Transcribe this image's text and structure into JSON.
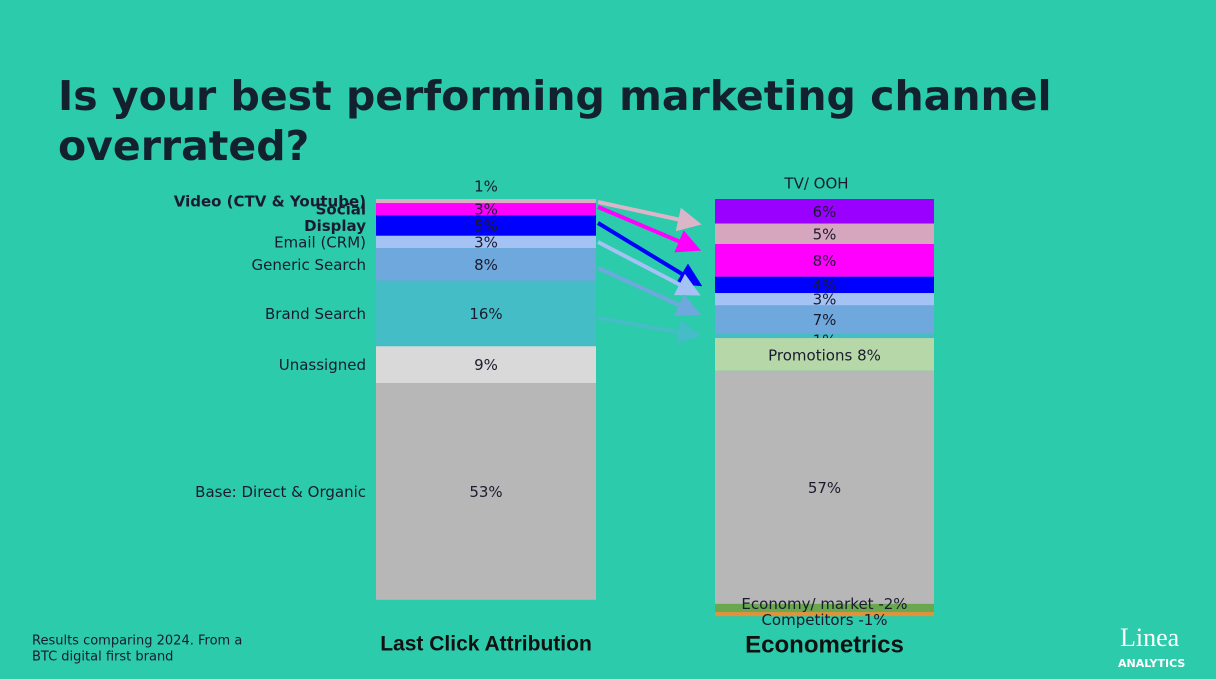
{
  "chart_data": {
    "type": "stacked_columns",
    "title": [
      "Is your best performing marketing channel",
      "overrated?"
    ],
    "columns": [
      {
        "name": "Last Click Attribution",
        "labels": [
          "Video (CTV & Youtube)",
          "Social",
          "Display",
          "Email (CRM)",
          "Generic Search",
          "Brand Search",
          "Unassigned",
          "Base: Direct & Organic"
        ],
        "values": [
          1,
          3,
          5,
          3,
          8,
          16,
          9,
          53
        ],
        "value_labels": [
          "1%",
          "3%",
          "5%",
          "3%",
          "8%",
          "16%",
          "9%",
          "53%"
        ],
        "colors": [
          "#dcaec6",
          "#ff00ff",
          "#0000ff",
          "#a4c2f4",
          "#6fa8dc",
          "#45bdc6",
          "#d9d9d9",
          "#b7b7b7"
        ],
        "label_colors": [
          "#ead6e2",
          "#ff00ff",
          "#0000ff",
          "#1b1b2f",
          "#1b1b2f",
          "#1b1b2f",
          "#1b1b2f",
          "#1b1b2f"
        ]
      },
      {
        "name": "Econometrics",
        "labels": [
          "TV/ OOH",
          null,
          null,
          null,
          null,
          null,
          null,
          "Promotions",
          null,
          "Economy/ market",
          "Competitors"
        ],
        "values": [
          6,
          5,
          8,
          4,
          3,
          7,
          1,
          8,
          57,
          -2,
          -1
        ],
        "value_labels": [
          "6%",
          "5%",
          "8%",
          "4%",
          "3%",
          "7%",
          "1%",
          "8%",
          "57%",
          "-2%",
          "-1%"
        ],
        "colors": [
          "#9900ff",
          "#d5a6bd",
          "#ff00ff",
          "#0000ff",
          "#a4c2f4",
          "#6fa8dc",
          "#45bdc6",
          "#b6d7a8",
          "#b7b7b7",
          "#6aa84f",
          "#e69138"
        ]
      }
    ],
    "footnote": [
      "Results comparing 2024. From a",
      "BTC digital first brand"
    ],
    "logo": {
      "name": "Linea",
      "tagline": "ANALYTICS"
    }
  }
}
